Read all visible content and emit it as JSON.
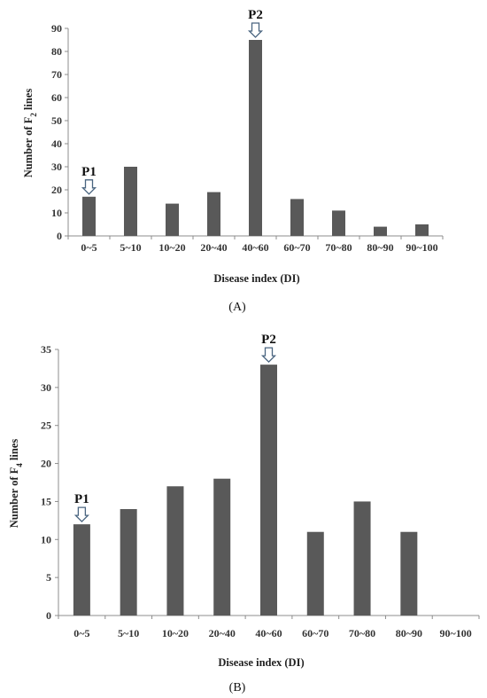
{
  "chart_data": [
    {
      "type": "bar",
      "panel_label": "(A)",
      "categories": [
        "0~5",
        "5~10",
        "10~20",
        "20~40",
        "40~60",
        "60~70",
        "70~80",
        "80~90",
        "90~100"
      ],
      "values": [
        17,
        30,
        14,
        19,
        85,
        16,
        11,
        4,
        5
      ],
      "xlabel": "Disease index (DI)",
      "ylabel_prefix": "Number of F",
      "ylabel_subscript": "2",
      "ylabel_suffix": " lines",
      "ylim": [
        0,
        90
      ],
      "yticks": [
        0,
        10,
        20,
        30,
        40,
        50,
        60,
        70,
        80,
        90
      ],
      "bar_color": "#595959",
      "markers": [
        {
          "label": "P1",
          "category": "0~5"
        },
        {
          "label": "P2",
          "category": "40~60"
        }
      ],
      "grid": false
    },
    {
      "type": "bar",
      "panel_label": "(B)",
      "categories": [
        "0~5",
        "5~10",
        "10~20",
        "20~40",
        "40~60",
        "60~70",
        "70~80",
        "80~90",
        "90~100"
      ],
      "values": [
        12,
        14,
        17,
        18,
        33,
        11,
        15,
        11,
        0
      ],
      "xlabel": "Disease index (DI)",
      "ylabel_prefix": "Number of F",
      "ylabel_subscript": "4",
      "ylabel_suffix": " lines",
      "ylim": [
        0,
        35
      ],
      "yticks": [
        0,
        5,
        10,
        15,
        20,
        25,
        30,
        35
      ],
      "bar_color": "#595959",
      "markers": [
        {
          "label": "P1",
          "category": "0~5"
        },
        {
          "label": "P2",
          "category": "40~60"
        }
      ],
      "grid": false
    }
  ]
}
